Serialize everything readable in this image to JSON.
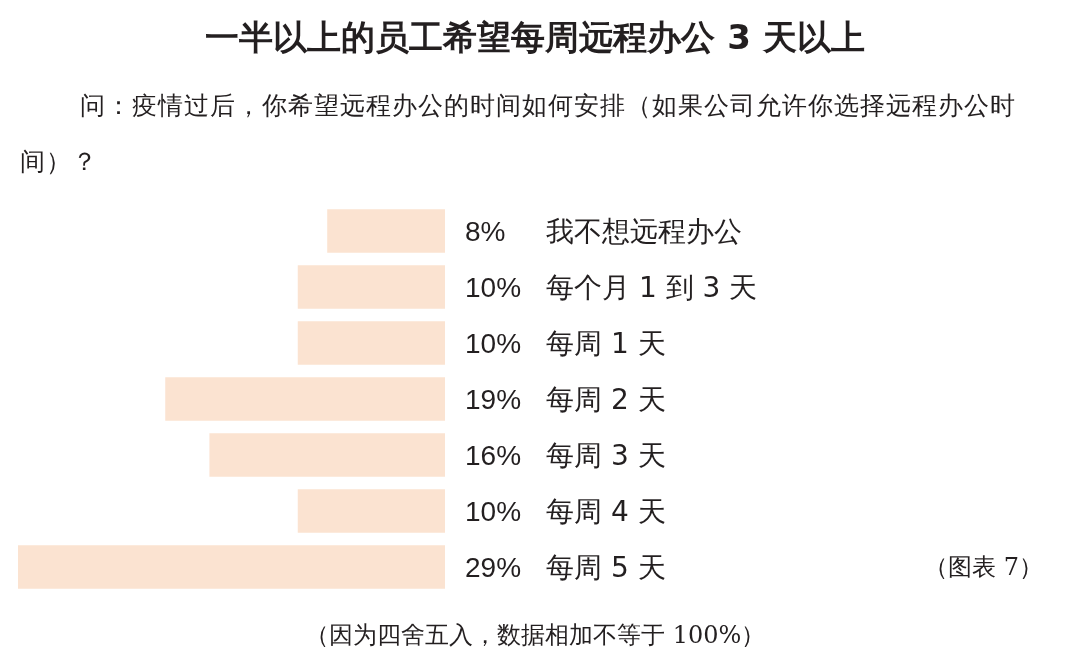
{
  "chart_data": {
    "type": "bar",
    "orientation": "horizontal",
    "title": "一半以上的员工希望每周远程办公 3 天以上",
    "subtitle": "问：疫情过后，你希望远程办公的时间如何安排（如果公司允许你选择远程办公时间）？",
    "categories": [
      "我不想远程办公",
      "每个月 1 到 3 天",
      "每周 1 天",
      "每周 2 天",
      "每周 3 天",
      "每周 4 天",
      "每周 5 天"
    ],
    "values": [
      8,
      10,
      10,
      19,
      16,
      10,
      29
    ],
    "value_labels": [
      "8%",
      "10%",
      "10%",
      "19%",
      "16%",
      "10%",
      "29%"
    ],
    "color": "#fbe3d1",
    "xlim": [
      29,
      0
    ],
    "tick_labels": "y",
    "annotations": [
      "（图表 7）",
      "（因为四舍五入，数据相加不等于 100%）"
    ]
  }
}
